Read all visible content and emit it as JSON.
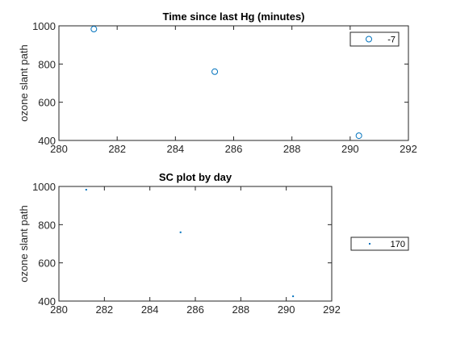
{
  "chart_data": [
    {
      "type": "scatter",
      "title": "Time since last Hg (minutes)",
      "xlabel": "",
      "ylabel": "ozone slant path",
      "xlim": [
        280,
        292
      ],
      "ylim": [
        400,
        1000
      ],
      "xticks": [
        "280",
        "282",
        "284",
        "286",
        "288",
        "290",
        "292"
      ],
      "yticks": [
        "400",
        "600",
        "800",
        "1000"
      ],
      "grid": false,
      "legend_position": "top-right",
      "series": [
        {
          "name": "-7",
          "marker": "circle",
          "color": "#0072BD",
          "points": [
            {
              "x": 281.2,
              "y": 983
            },
            {
              "x": 285.35,
              "y": 760
            },
            {
              "x": 290.3,
              "y": 425
            }
          ]
        }
      ]
    },
    {
      "type": "scatter",
      "title": "SC plot by day",
      "xlabel": "",
      "ylabel": "ozone slant path",
      "xlim": [
        280,
        292
      ],
      "ylim": [
        400,
        1000
      ],
      "xticks": [
        "280",
        "282",
        "284",
        "286",
        "288",
        "290",
        "292"
      ],
      "yticks": [
        "400",
        "600",
        "800",
        "1000"
      ],
      "grid": false,
      "legend_position": "outside-right",
      "series": [
        {
          "name": "170",
          "marker": "point",
          "color": "#0072BD",
          "points": [
            {
              "x": 281.2,
              "y": 983
            },
            {
              "x": 285.35,
              "y": 760
            },
            {
              "x": 290.3,
              "y": 425
            }
          ]
        }
      ]
    }
  ]
}
